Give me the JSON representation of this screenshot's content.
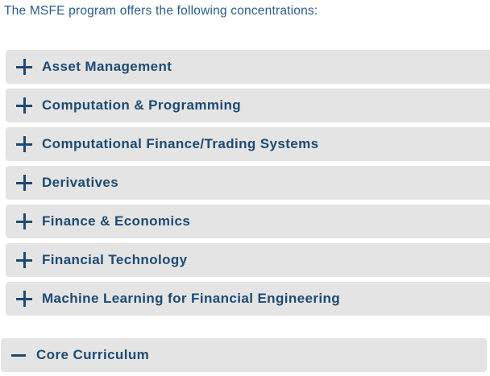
{
  "intro": {
    "text": "The MSFE program offers the following concentrations:"
  },
  "colors": {
    "accent": "#1c4a74",
    "intro_text": "#2b5c8e",
    "item_bg": "#e4e4e4"
  },
  "accordions": {
    "concentrations": {
      "items": [
        {
          "label": "Asset Management",
          "state": "collapsed",
          "icon": "plus-icon"
        },
        {
          "label": "Computation & Programming",
          "state": "collapsed",
          "icon": "plus-icon"
        },
        {
          "label": "Computational Finance/Trading Systems",
          "state": "collapsed",
          "icon": "plus-icon"
        },
        {
          "label": "Derivatives",
          "state": "collapsed",
          "icon": "plus-icon"
        },
        {
          "label": "Finance & Economics",
          "state": "collapsed",
          "icon": "plus-icon"
        },
        {
          "label": "Financial Technology",
          "state": "collapsed",
          "icon": "plus-icon"
        },
        {
          "label": "Machine Learning for Financial Engineering",
          "state": "collapsed",
          "icon": "plus-icon"
        }
      ]
    },
    "core": {
      "items": [
        {
          "label": "Core Curriculum",
          "state": "expanded",
          "icon": "minus-icon"
        }
      ]
    }
  }
}
